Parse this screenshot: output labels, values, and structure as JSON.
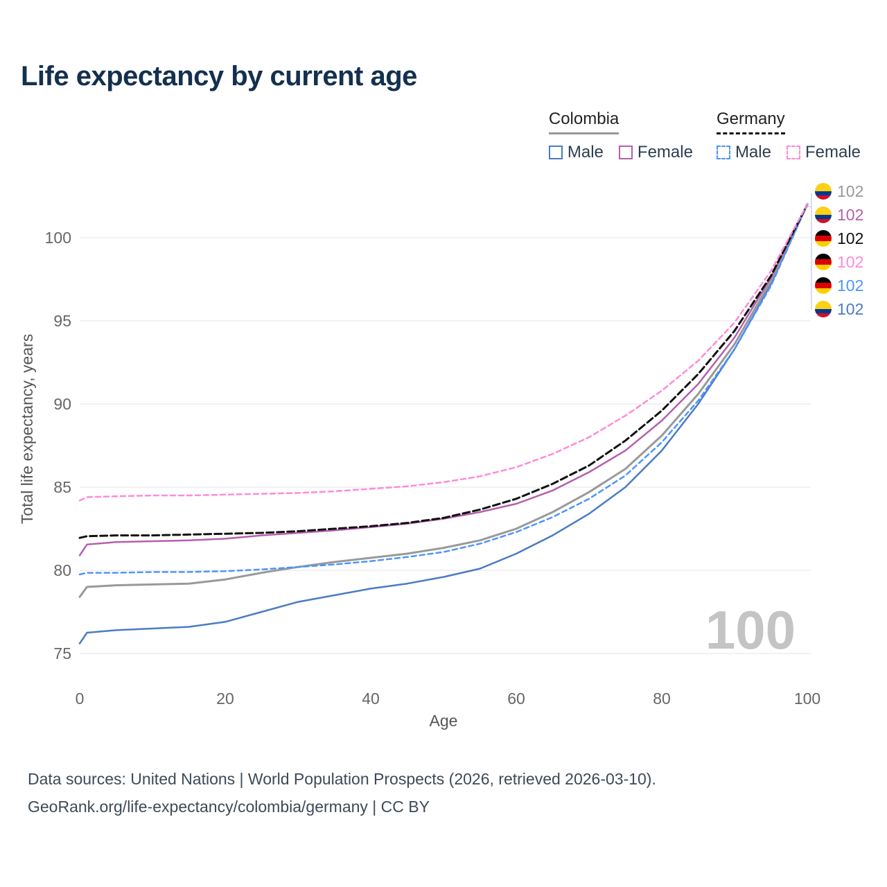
{
  "title": "Life expectancy by current age",
  "legend": {
    "groups": [
      {
        "label": "Colombia",
        "underline_style": "solid",
        "underline_color": "#999999",
        "items": [
          {
            "label": "Male",
            "color": "#4a7bc4",
            "style": "solid"
          },
          {
            "label": "Female",
            "color": "#b45fae",
            "style": "solid"
          }
        ]
      },
      {
        "label": "Germany",
        "underline_style": "dashed",
        "underline_color": "#111111",
        "items": [
          {
            "label": "Male",
            "color": "#4d94ff",
            "style": "dashed"
          },
          {
            "label": "Female",
            "color": "#ff8ad8",
            "style": "dashed"
          }
        ]
      }
    ]
  },
  "flags": {
    "colombia": {
      "colors": [
        "#FCD116",
        "#003893",
        "#CE1126"
      ],
      "stops": [
        50,
        75
      ]
    },
    "germany": {
      "colors": [
        "#000000",
        "#DD0000",
        "#FFCE00"
      ],
      "stops": [
        33.4,
        66.7
      ]
    }
  },
  "chart_data": {
    "type": "line",
    "title": "Life expectancy by current age",
    "xlabel": "Age",
    "ylabel": "Total life expectancy, years",
    "xlim": [
      0,
      100
    ],
    "ylim": [
      75,
      103
    ],
    "xticks": [
      0,
      20,
      40,
      60,
      80,
      100
    ],
    "yticks": [
      75,
      80,
      85,
      90,
      95,
      100
    ],
    "grid": "horizontal",
    "watermark": "100",
    "x": [
      0,
      1,
      5,
      10,
      15,
      20,
      25,
      30,
      35,
      40,
      45,
      50,
      55,
      60,
      65,
      70,
      75,
      80,
      85,
      90,
      95,
      100
    ],
    "series": [
      {
        "id": "colombia-male",
        "name": "Colombia Male",
        "country": "colombia",
        "color": "#4a7bc4",
        "dash": "",
        "width": 2.5,
        "values": [
          75.6,
          76.25,
          76.4,
          76.5,
          76.6,
          76.9,
          77.5,
          78.1,
          78.5,
          78.9,
          79.2,
          79.6,
          80.1,
          81.0,
          82.1,
          83.4,
          85.0,
          87.2,
          90.0,
          93.3,
          97.2,
          102.0
        ]
      },
      {
        "id": "colombia-both",
        "name": "Colombia Both sexes",
        "country": "colombia",
        "color": "#999999",
        "dash": "",
        "width": 3,
        "values": [
          78.4,
          79.0,
          79.1,
          79.15,
          79.2,
          79.45,
          79.85,
          80.2,
          80.5,
          80.75,
          81.0,
          81.35,
          81.8,
          82.5,
          83.5,
          84.7,
          86.1,
          88.1,
          90.6,
          93.6,
          97.4,
          102.0
        ]
      },
      {
        "id": "colombia-female",
        "name": "Colombia Female",
        "country": "colombia",
        "color": "#b45fae",
        "dash": "",
        "width": 2.5,
        "values": [
          80.9,
          81.55,
          81.7,
          81.75,
          81.8,
          81.9,
          82.1,
          82.25,
          82.4,
          82.6,
          82.8,
          83.1,
          83.5,
          84.0,
          84.8,
          85.9,
          87.2,
          89.0,
          91.2,
          94.0,
          97.6,
          102.0
        ]
      },
      {
        "id": "germany-male",
        "name": "Germany Male",
        "country": "germany",
        "color": "#4d94ff",
        "dash": "7 5",
        "width": 2.5,
        "values": [
          79.75,
          79.85,
          79.85,
          79.9,
          79.9,
          79.95,
          80.05,
          80.2,
          80.35,
          80.55,
          80.8,
          81.1,
          81.6,
          82.3,
          83.2,
          84.3,
          85.7,
          87.7,
          90.2,
          93.3,
          97.1,
          102.0
        ]
      },
      {
        "id": "germany-both",
        "name": "Germany Both sexes",
        "country": "germany",
        "color": "#111111",
        "dash": "10 5",
        "width": 3,
        "values": [
          81.95,
          82.05,
          82.1,
          82.1,
          82.15,
          82.2,
          82.25,
          82.35,
          82.5,
          82.65,
          82.85,
          83.15,
          83.65,
          84.3,
          85.2,
          86.3,
          87.8,
          89.6,
          91.8,
          94.4,
          97.7,
          102.0
        ]
      },
      {
        "id": "germany-female",
        "name": "Germany Female",
        "country": "germany",
        "color": "#ff8ad8",
        "dash": "7 5",
        "width": 2.5,
        "values": [
          84.2,
          84.4,
          84.45,
          84.5,
          84.5,
          84.55,
          84.6,
          84.65,
          84.75,
          84.9,
          85.05,
          85.3,
          85.65,
          86.2,
          87.0,
          88.0,
          89.3,
          90.8,
          92.6,
          94.9,
          98.0,
          102.0
        ]
      }
    ],
    "end_labels": [
      {
        "value": "102",
        "country": "colombia",
        "color": "#999999",
        "series": "colombia-both"
      },
      {
        "value": "102",
        "country": "colombia",
        "color": "#b45fae",
        "series": "colombia-female"
      },
      {
        "value": "102",
        "country": "germany",
        "color": "#111111",
        "series": "germany-both"
      },
      {
        "value": "102",
        "country": "germany",
        "color": "#ff8ad8",
        "series": "germany-female"
      },
      {
        "value": "102",
        "country": "germany",
        "color": "#4d94ff",
        "series": "germany-male"
      },
      {
        "value": "102",
        "country": "colombia",
        "color": "#4a7bc4",
        "series": "colombia-male"
      }
    ]
  },
  "footer": {
    "line1": "Data sources: United Nations | World Population Prospects (2026, retrieved 2026-03-10).",
    "line2": "GeoRank.org/life-expectancy/colombia/germany | CC BY"
  }
}
